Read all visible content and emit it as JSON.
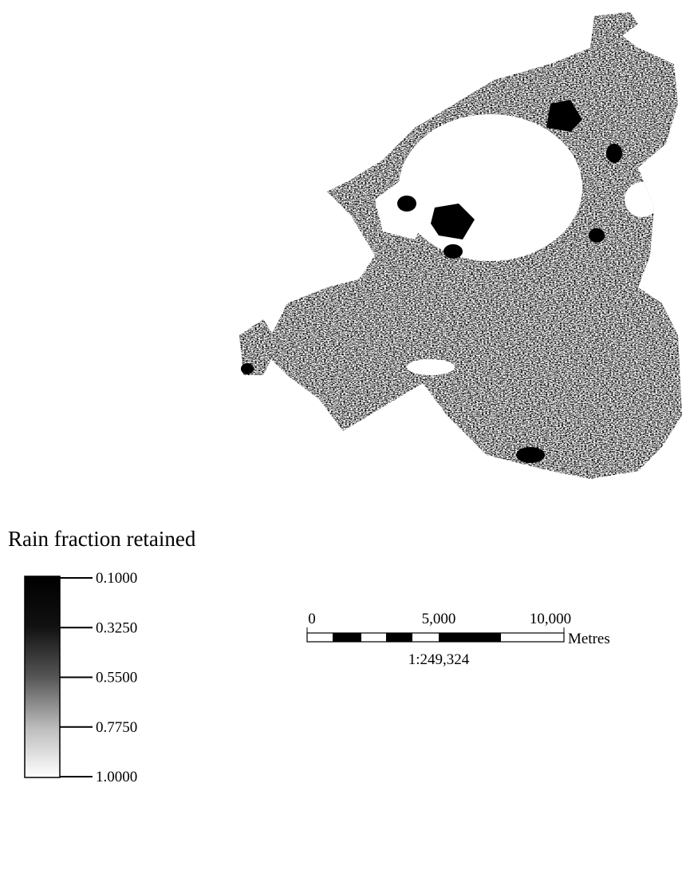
{
  "legend": {
    "title": "Rain fraction retained",
    "labels": [
      "0.1000",
      "0.3250",
      "0.5500",
      "0.7750",
      "1.0000"
    ]
  },
  "scale_bar": {
    "labels": [
      "0",
      "5,000",
      "10,000"
    ],
    "units": "Metres",
    "ratio": "1:249,324"
  }
}
